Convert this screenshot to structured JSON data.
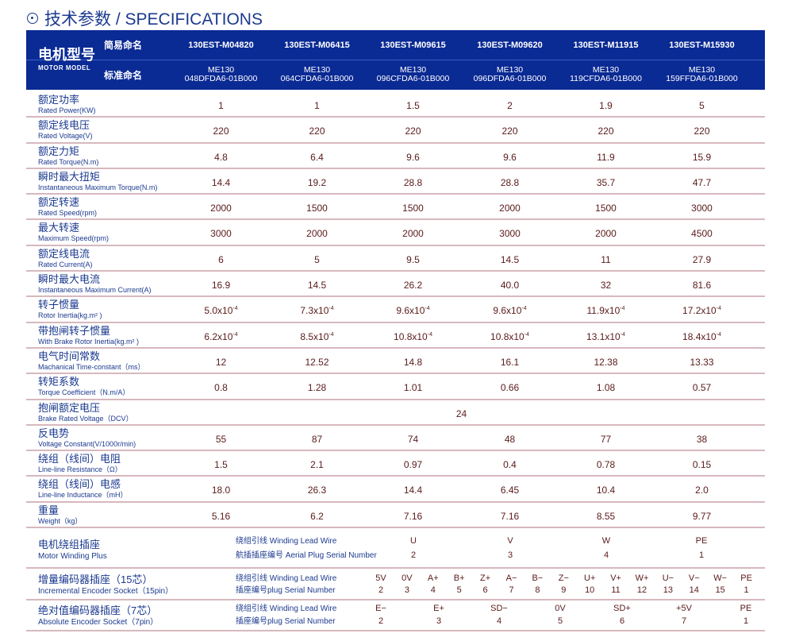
{
  "title": "技术参数 / SPECIFICATIONS",
  "header": {
    "model_cn": "电机型号",
    "model_en": "MOTOR MODEL",
    "simple_label": "简易命名",
    "standard_label": "标准命名",
    "models": [
      {
        "simple": "130EST-M04820",
        "std1": "ME130",
        "std2": "048DFDA6-01B000"
      },
      {
        "simple": "130EST-M06415",
        "std1": "ME130",
        "std2": "064CFDA6-01B000"
      },
      {
        "simple": "130EST-M09615",
        "std1": "ME130",
        "std2": "096CFDA6-01B000"
      },
      {
        "simple": "130EST-M09620",
        "std1": "ME130",
        "std2": "096DFDA6-01B000"
      },
      {
        "simple": "130EST-M11915",
        "std1": "ME130",
        "std2": "119CFDA6-01B000"
      },
      {
        "simple": "130EST-M15930",
        "std1": "ME130",
        "std2": "159FFDA6-01B000"
      }
    ]
  },
  "rows": [
    {
      "cn": "额定功率",
      "en": "Rated Power(KW)",
      "values": [
        "1",
        "1",
        "1.5",
        "2",
        "1.9",
        "5"
      ]
    },
    {
      "cn": "额定线电压",
      "en": "Rated Voltage(V)",
      "values": [
        "220",
        "220",
        "220",
        "220",
        "220",
        "220"
      ]
    },
    {
      "cn": "额定力矩",
      "en": "Rated Torque(N.m)",
      "values": [
        "4.8",
        "6.4",
        "9.6",
        "9.6",
        "11.9",
        "15.9"
      ]
    },
    {
      "cn": "瞬时最大扭矩",
      "en": "Instantaneous Maximum Torque(N.m)",
      "values": [
        "14.4",
        "19.2",
        "28.8",
        "28.8",
        "35.7",
        "47.7"
      ]
    },
    {
      "cn": "额定转速",
      "en": "Rated Speed(rpm)",
      "values": [
        "2000",
        "1500",
        "1500",
        "2000",
        "1500",
        "3000"
      ]
    },
    {
      "cn": "最大转速",
      "en": "Maximum Speed(rpm)",
      "values": [
        "3000",
        "2000",
        "2000",
        "3000",
        "2000",
        "4500"
      ]
    },
    {
      "cn": "额定线电流",
      "en": "Rated Current(A)",
      "values": [
        "6",
        "5",
        "9.5",
        "14.5",
        "11",
        "27.9"
      ]
    },
    {
      "cn": "瞬时最大电流",
      "en": "Instantaneous Maximum Current(A)",
      "values": [
        "16.9",
        "14.5",
        "26.2",
        "40.0",
        "32",
        "81.6"
      ]
    },
    {
      "cn": "转子惯量",
      "en": "Rotor Inertia(kg.m² )",
      "values": [
        "5.0x10",
        "7.3x10",
        "9.6x10",
        "9.6x10",
        "11.9x10",
        "17.2x10"
      ],
      "exp": "-4"
    },
    {
      "cn": "带抱闸转子惯量",
      "en": "With Brake Rotor Inertia(kg.m² )",
      "values": [
        "6.2x10",
        "8.5x10",
        "10.8x10",
        "10.8x10",
        "13.1x10",
        "18.4x10"
      ],
      "exp": "-4"
    },
    {
      "cn": "电气时间常数",
      "en": "Machanical Time-constant（ms）",
      "values": [
        "12",
        "12.52",
        "14.8",
        "16.1",
        "12.38",
        "13.33"
      ]
    },
    {
      "cn": "转矩系数",
      "en": "Torque Coefficient（N.m/A）",
      "values": [
        "0.8",
        "1.28",
        "1.01",
        "0.66",
        "1.08",
        "0.57"
      ]
    },
    {
      "cn": "抱闸额定电压",
      "en": "Brake Rated Voltage（DCV）",
      "span": "24"
    },
    {
      "cn": "反电势",
      "en": "Voltage Constant(V/1000r/min)",
      "values": [
        "55",
        "87",
        "74",
        "48",
        "77",
        "38"
      ]
    },
    {
      "cn": "绕组（线间）电阻",
      "en": "Line-line Resistance（Ω）",
      "values": [
        "1.5",
        "2.1",
        "0.97",
        "0.4",
        "0.78",
        "0.15"
      ]
    },
    {
      "cn": "绕组（线间）电感",
      "en": "Line-line Inductance（mH）",
      "values": [
        "18.0",
        "26.3",
        "14.4",
        "6.45",
        "10.4",
        "2.0"
      ]
    },
    {
      "cn": "重量",
      "en": "Weight（kg）",
      "values": [
        "5.16",
        "6.2",
        "7.16",
        "7.16",
        "8.55",
        "9.77"
      ]
    }
  ],
  "motor_winding": {
    "cn": "电机绕组插座",
    "en": "Motor Winding Plus",
    "sub1": "绕组引线 Winding Lead Wire",
    "sub2": "航插插座编号 Aerial Plug Serial Number",
    "wires": [
      "U",
      "V",
      "W",
      "PE"
    ],
    "pins": [
      "2",
      "3",
      "4",
      "1"
    ]
  },
  "incremental": {
    "cn": "增量编码器插座（15芯）",
    "en": "Incremental Encoder Socket（15pin）",
    "sub1": "绕组引线 Winding Lead Wire",
    "sub2": "插座编号plug Serial Number",
    "wires": [
      "5V",
      "0V",
      "A+",
      "B+",
      "Z+",
      "A−",
      "B−",
      "Z−",
      "U+",
      "V+",
      "W+",
      "U−",
      "V−",
      "W−",
      "PE"
    ],
    "pins": [
      "2",
      "3",
      "4",
      "5",
      "6",
      "7",
      "8",
      "9",
      "10",
      "11",
      "12",
      "13",
      "14",
      "15",
      "1"
    ]
  },
  "absolute": {
    "cn": "绝对值编码器插座（7芯）",
    "en": "Absolute Encoder Socket（7pin）",
    "sub1": "绕组引线 Winding Lead Wire",
    "sub2": "插座编号plug Serial Number",
    "wires": [
      "E−",
      "E+",
      "SD−",
      "0V",
      "SD+",
      "+5V",
      "PE"
    ],
    "pins": [
      "2",
      "3",
      "4",
      "5",
      "6",
      "7",
      "1"
    ]
  },
  "colors": {
    "header_bg": "#0a2a94",
    "label": "#1b3a8f",
    "value": "#5a1a1a",
    "divider": "#d7b8be"
  }
}
